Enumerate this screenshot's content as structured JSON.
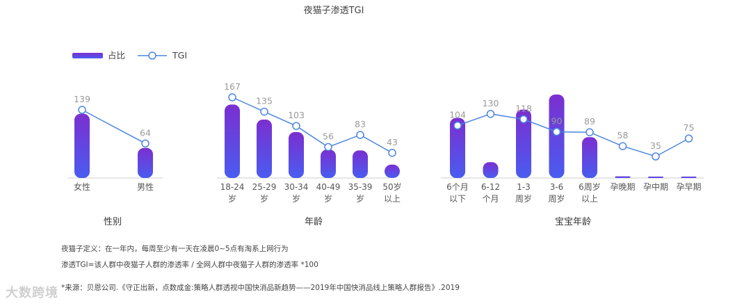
{
  "title": "夜猫子渗透TGI",
  "legend": {
    "bar_label": "占比",
    "line_label": "TGI"
  },
  "colors": {
    "bar_top": "#7b2fd0",
    "bar_bottom": "#4a5cf0",
    "line": "#4a86e0",
    "axis": "#cccccc",
    "text": "#555555",
    "label": "#999999"
  },
  "chart_data": [
    {
      "type": "bar+line",
      "title": "性别",
      "categories": [
        [
          "女性"
        ],
        [
          "男性"
        ]
      ],
      "bar_values_relative": [
        0.77,
        0.36
      ],
      "tgi": [
        139,
        64
      ]
    },
    {
      "type": "bar+line",
      "title": "年龄",
      "categories": [
        [
          "18-24",
          "岁"
        ],
        [
          "25-29",
          "岁"
        ],
        [
          "30-34",
          "岁"
        ],
        [
          "40-49",
          "岁"
        ],
        [
          "35-39",
          "岁"
        ],
        [
          "50岁",
          "以上"
        ]
      ],
      "bar_values_relative": [
        0.88,
        0.7,
        0.55,
        0.34,
        0.33,
        0.16
      ],
      "tgi": [
        167,
        135,
        103,
        56,
        83,
        43
      ]
    },
    {
      "type": "bar+line",
      "title": "宝宝年龄",
      "categories": [
        [
          "6个月",
          "以下"
        ],
        [
          "6-12",
          "个月"
        ],
        [
          "1-3",
          "周岁"
        ],
        [
          "3-6",
          "周岁"
        ],
        [
          "6周岁",
          "以上"
        ],
        [
          "孕晚期"
        ],
        [
          "孕中期"
        ],
        [
          "孕早期"
        ]
      ],
      "bar_values_relative": [
        0.72,
        0.19,
        0.82,
        1.0,
        0.49,
        0.02,
        0.01,
        0.01
      ],
      "tgi": [
        104,
        130,
        118,
        90,
        89,
        58,
        35,
        75
      ]
    }
  ],
  "notes": {
    "line1": "夜猫子定义：在一年内，每周至少有一天在凌晨0~5点有淘系上网行为",
    "line2": "渗透TGI=该人群中夜猫子人群的渗透率 / 全网人群中夜猫子人群的渗透率 *100",
    "line3": "*来源：贝恩公司.《守正出新，点数成金:策略人群透视中国快消品新趋势——2019年中国快消品线上策略人群报告》.2019"
  },
  "watermark": "大数跨境"
}
